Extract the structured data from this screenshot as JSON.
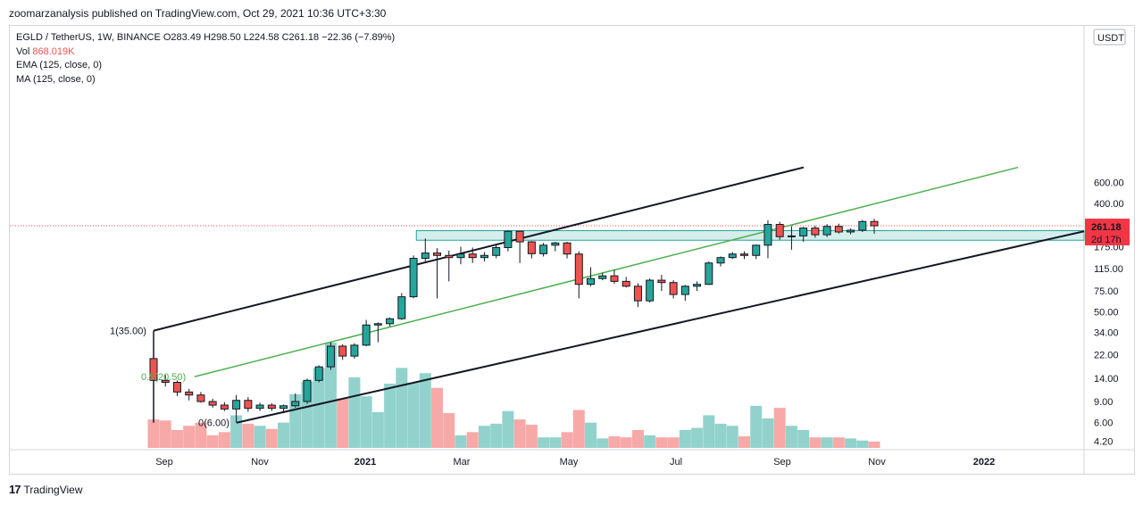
{
  "header": {
    "published": "zoomarzanalysis published on TradingView.com, Oct 29, 2021 10:36 UTC+3:30"
  },
  "legend": {
    "symbol": "EGLD / TetherUS, 1W, BINANCE",
    "ohlc": "O283.49  H298.50  L224.58  C261.18  −22.36 (−7.89%)",
    "vol_label": "Vol",
    "vol_value": "868.019K",
    "ema": "EMA (125, close, 0)",
    "ma": "MA (125, close, 0)"
  },
  "footer": {
    "brand": "TradingView",
    "logo": "17"
  },
  "price_axis": {
    "currency": "USDT",
    "ticks": [
      "600.00",
      "400.00",
      "175.00",
      "115.00",
      "75.00",
      "50.00",
      "34.00",
      "22.00",
      "14.00",
      "9.00",
      "6.00",
      "4.20"
    ],
    "last_price": "261.18",
    "countdown": "2d 17h"
  },
  "time_axis": {
    "labels": [
      "Sep",
      "Nov",
      "2021",
      "Mar",
      "May",
      "Jul",
      "Sep",
      "Nov",
      "2022"
    ]
  },
  "annotations": {
    "fib_top": "1(35.00)",
    "fib_mid": "0.5(20.50)",
    "fib_bottom": "0(6.00)"
  },
  "colors": {
    "up": "#26a69a",
    "down": "#ef5350",
    "vol_up": "#92d2cc",
    "vol_down": "#f7a9a7",
    "mid_line": "#4caf50",
    "zone": "#b2dfdb",
    "zone_border": "#26a69a",
    "label_red": "#f23645"
  },
  "chart_data": {
    "type": "candlestick",
    "scale": "log",
    "interval": "1W",
    "x_labels": [
      "Sep",
      "Nov",
      "2021",
      "Mar",
      "May",
      "Jul",
      "Sep",
      "Nov",
      "2022"
    ],
    "ylim": [
      4.2,
      800
    ],
    "grid": false,
    "candles": [
      {
        "o": 20.5,
        "h": 35.0,
        "l": 10.5,
        "c": 13.5
      },
      {
        "o": 13.5,
        "h": 15.0,
        "l": 12.0,
        "c": 13.0
      },
      {
        "o": 13.0,
        "h": 13.5,
        "l": 10.0,
        "c": 10.8
      },
      {
        "o": 10.8,
        "h": 11.5,
        "l": 9.2,
        "c": 10.2
      },
      {
        "o": 10.2,
        "h": 10.8,
        "l": 8.8,
        "c": 9.0
      },
      {
        "o": 9.0,
        "h": 9.5,
        "l": 8.0,
        "c": 8.4
      },
      {
        "o": 8.4,
        "h": 8.9,
        "l": 7.5,
        "c": 7.8
      },
      {
        "o": 7.8,
        "h": 10.2,
        "l": 6.0,
        "c": 9.2
      },
      {
        "o": 9.2,
        "h": 9.8,
        "l": 7.4,
        "c": 7.9
      },
      {
        "o": 7.9,
        "h": 8.8,
        "l": 7.5,
        "c": 8.4
      },
      {
        "o": 8.4,
        "h": 8.7,
        "l": 7.5,
        "c": 7.9
      },
      {
        "o": 7.9,
        "h": 8.5,
        "l": 7.2,
        "c": 8.3
      },
      {
        "o": 8.3,
        "h": 10.5,
        "l": 8.0,
        "c": 9.0
      },
      {
        "o": 9.0,
        "h": 14.0,
        "l": 8.6,
        "c": 13.5
      },
      {
        "o": 13.5,
        "h": 18.0,
        "l": 13.0,
        "c": 17.5
      },
      {
        "o": 17.5,
        "h": 28.0,
        "l": 16.5,
        "c": 26.0
      },
      {
        "o": 26.0,
        "h": 27.0,
        "l": 20.0,
        "c": 21.5
      },
      {
        "o": 21.5,
        "h": 27.5,
        "l": 20.5,
        "c": 26.5
      },
      {
        "o": 26.5,
        "h": 43.0,
        "l": 26.0,
        "c": 39.0
      },
      {
        "o": 39.0,
        "h": 41.0,
        "l": 28.0,
        "c": 40.0
      },
      {
        "o": 40.0,
        "h": 45.0,
        "l": 38.0,
        "c": 44.0
      },
      {
        "o": 44.0,
        "h": 72.0,
        "l": 43.0,
        "c": 67.0
      },
      {
        "o": 67.0,
        "h": 148.0,
        "l": 65.0,
        "c": 140.0
      },
      {
        "o": 140.0,
        "h": 205.0,
        "l": 132.0,
        "c": 155.0
      },
      {
        "o": 155.0,
        "h": 170.0,
        "l": 65.0,
        "c": 148.0
      },
      {
        "o": 148.0,
        "h": 162.0,
        "l": 90.0,
        "c": 142.0
      },
      {
        "o": 142.0,
        "h": 175.0,
        "l": 125.0,
        "c": 152.0
      },
      {
        "o": 152.0,
        "h": 172.0,
        "l": 128.0,
        "c": 142.0
      },
      {
        "o": 142.0,
        "h": 158.0,
        "l": 132.0,
        "c": 148.0
      },
      {
        "o": 148.0,
        "h": 182.0,
        "l": 140.0,
        "c": 172.0
      },
      {
        "o": 172.0,
        "h": 240.0,
        "l": 160.0,
        "c": 235.0
      },
      {
        "o": 235.0,
        "h": 238.0,
        "l": 128.0,
        "c": 192.0
      },
      {
        "o": 192.0,
        "h": 195.0,
        "l": 140.0,
        "c": 153.0
      },
      {
        "o": 153.0,
        "h": 188.0,
        "l": 145.0,
        "c": 180.0
      },
      {
        "o": 180.0,
        "h": 192.0,
        "l": 160.0,
        "c": 188.0
      },
      {
        "o": 188.0,
        "h": 192.0,
        "l": 140.0,
        "c": 152.0
      },
      {
        "o": 152.0,
        "h": 160.0,
        "l": 65.0,
        "c": 85.0
      },
      {
        "o": 85.0,
        "h": 118.0,
        "l": 82.0,
        "c": 95.0
      },
      {
        "o": 95.0,
        "h": 106.0,
        "l": 92.0,
        "c": 100.0
      },
      {
        "o": 100.0,
        "h": 112.0,
        "l": 86.0,
        "c": 90.0
      },
      {
        "o": 90.0,
        "h": 98.0,
        "l": 80.0,
        "c": 82.0
      },
      {
        "o": 82.0,
        "h": 87.0,
        "l": 55.0,
        "c": 62.0
      },
      {
        "o": 62.0,
        "h": 95.0,
        "l": 60.0,
        "c": 92.0
      },
      {
        "o": 92.0,
        "h": 102.0,
        "l": 75.0,
        "c": 88.0
      },
      {
        "o": 88.0,
        "h": 92.0,
        "l": 65.0,
        "c": 70.0
      },
      {
        "o": 70.0,
        "h": 84.0,
        "l": 62.0,
        "c": 82.0
      },
      {
        "o": 82.0,
        "h": 90.0,
        "l": 75.0,
        "c": 85.0
      },
      {
        "o": 85.0,
        "h": 132.0,
        "l": 84.0,
        "c": 128.0
      },
      {
        "o": 128.0,
        "h": 145.0,
        "l": 120.0,
        "c": 142.0
      },
      {
        "o": 142.0,
        "h": 158.0,
        "l": 138.0,
        "c": 152.0
      },
      {
        "o": 152.0,
        "h": 160.0,
        "l": 138.0,
        "c": 148.0
      },
      {
        "o": 148.0,
        "h": 182.0,
        "l": 138.0,
        "c": 180.0
      },
      {
        "o": 180.0,
        "h": 290.0,
        "l": 140.0,
        "c": 268.0
      },
      {
        "o": 268.0,
        "h": 282.0,
        "l": 200.0,
        "c": 212.0
      },
      {
        "o": 212.0,
        "h": 260.0,
        "l": 165.0,
        "c": 215.0
      },
      {
        "o": 215.0,
        "h": 255.0,
        "l": 192.0,
        "c": 250.0
      },
      {
        "o": 250.0,
        "h": 262.0,
        "l": 208.0,
        "c": 220.0
      },
      {
        "o": 220.0,
        "h": 270.0,
        "l": 210.0,
        "c": 258.0
      },
      {
        "o": 258.0,
        "h": 272.0,
        "l": 225.0,
        "c": 232.0
      },
      {
        "o": 232.0,
        "h": 248.0,
        "l": 222.0,
        "c": 240.0
      },
      {
        "o": 240.0,
        "h": 292.0,
        "l": 232.0,
        "c": 283.5
      },
      {
        "o": 283.49,
        "h": 298.5,
        "l": 224.58,
        "c": 261.18
      }
    ],
    "volume_relative": [
      0.27,
      0.26,
      0.17,
      0.21,
      0.24,
      0.12,
      0.15,
      0.31,
      0.23,
      0.21,
      0.18,
      0.24,
      0.51,
      0.63,
      0.76,
      1.0,
      0.47,
      0.67,
      0.49,
      0.34,
      0.61,
      0.76,
      0.62,
      0.71,
      0.57,
      0.33,
      0.12,
      0.15,
      0.21,
      0.23,
      0.35,
      0.27,
      0.22,
      0.1,
      0.1,
      0.15,
      0.36,
      0.24,
      0.09,
      0.11,
      0.1,
      0.17,
      0.12,
      0.1,
      0.1,
      0.17,
      0.19,
      0.31,
      0.23,
      0.21,
      0.11,
      0.4,
      0.28,
      0.38,
      0.21,
      0.17,
      0.1,
      0.1,
      0.1,
      0.09,
      0.07,
      0.06
    ],
    "zone": {
      "low": 198,
      "high": 238,
      "from_index": 23
    },
    "annotations": [
      "1(35.00)",
      "0.5(20.50)",
      "0(6.00)"
    ],
    "last_price": 261.18
  }
}
